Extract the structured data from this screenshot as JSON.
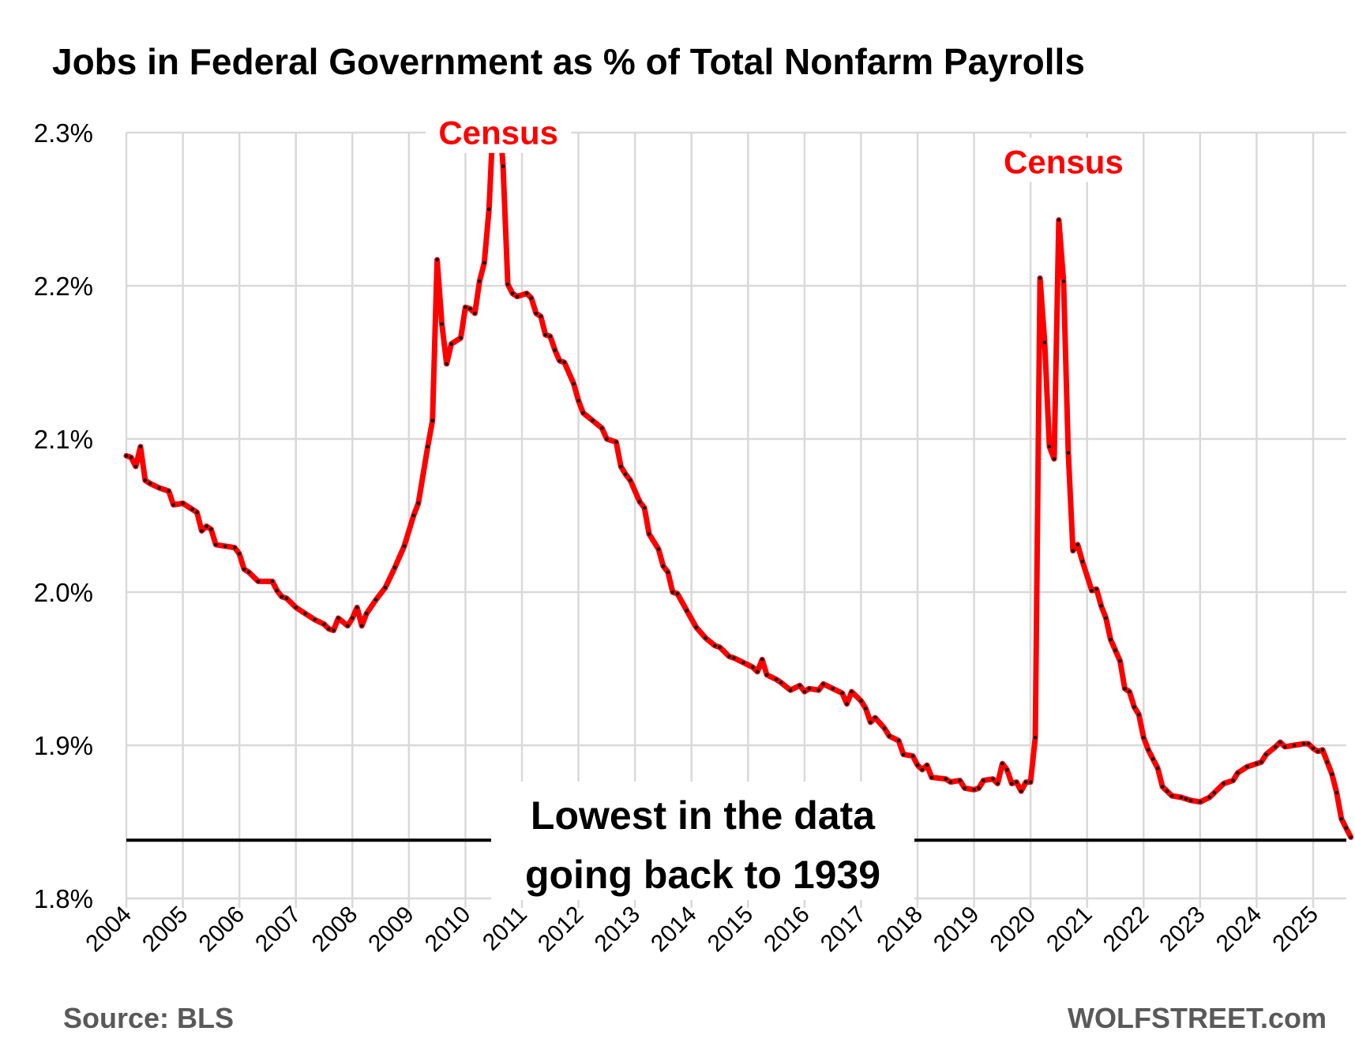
{
  "chart_data": {
    "type": "line",
    "title": "Jobs in Federal Government as % of Total Nonfarm Payrolls",
    "xlabel": "",
    "ylabel": "",
    "ylim": [
      1.8,
      2.3
    ],
    "y_ticks": [
      "1.8%",
      "1.9%",
      "2.0%",
      "2.1%",
      "2.2%",
      "2.3%"
    ],
    "x_ticks": [
      "2004",
      "2005",
      "2006",
      "2007",
      "2008",
      "2009",
      "2010",
      "2011",
      "2012",
      "2013",
      "2014",
      "2015",
      "2016",
      "2017",
      "2018",
      "2019",
      "2020",
      "2021",
      "2022",
      "2023",
      "2024",
      "2025"
    ],
    "grid": true,
    "series": [
      {
        "color": "#ff0000",
        "marker_color": "#000000",
        "points": [
          [
            "2004-01",
            2.089
          ],
          [
            "2004-02",
            2.088
          ],
          [
            "2004-03",
            2.082
          ],
          [
            "2004-04",
            2.095
          ],
          [
            "2004-05",
            2.073
          ],
          [
            "2004-06",
            2.071
          ],
          [
            "2004-08",
            2.068
          ],
          [
            "2004-10",
            2.066
          ],
          [
            "2004-11",
            2.057
          ],
          [
            "2005-01",
            2.058
          ],
          [
            "2005-03",
            2.054
          ],
          [
            "2005-04",
            2.052
          ],
          [
            "2005-05",
            2.04
          ],
          [
            "2005-06",
            2.043
          ],
          [
            "2005-07",
            2.041
          ],
          [
            "2005-08",
            2.031
          ],
          [
            "2005-10",
            2.03
          ],
          [
            "2005-12",
            2.029
          ],
          [
            "2006-01",
            2.025
          ],
          [
            "2006-02",
            2.015
          ],
          [
            "2006-03",
            2.013
          ],
          [
            "2006-05",
            2.007
          ],
          [
            "2006-08",
            2.007
          ],
          [
            "2006-09",
            2.001
          ],
          [
            "2006-10",
            1.997
          ],
          [
            "2006-11",
            1.996
          ],
          [
            "2007-01",
            1.99
          ],
          [
            "2007-03",
            1.986
          ],
          [
            "2007-05",
            1.982
          ],
          [
            "2007-07",
            1.979
          ],
          [
            "2007-08",
            1.976
          ],
          [
            "2007-09",
            1.975
          ],
          [
            "2007-10",
            1.983
          ],
          [
            "2007-12",
            1.978
          ],
          [
            "2008-01",
            1.983
          ],
          [
            "2008-02",
            1.99
          ],
          [
            "2008-03",
            1.978
          ],
          [
            "2008-04",
            1.986
          ],
          [
            "2008-06",
            1.995
          ],
          [
            "2008-08",
            2.003
          ],
          [
            "2008-10",
            2.016
          ],
          [
            "2008-12",
            2.03
          ],
          [
            "2009-02",
            2.05
          ],
          [
            "2009-03",
            2.058
          ],
          [
            "2009-05",
            2.095
          ],
          [
            "2009-06",
            2.112
          ],
          [
            "2009-07",
            2.217
          ],
          [
            "2009-08",
            2.175
          ],
          [
            "2009-09",
            2.149
          ],
          [
            "2009-10",
            2.162
          ],
          [
            "2009-12",
            2.166
          ],
          [
            "2010-01",
            2.186
          ],
          [
            "2010-02",
            2.185
          ],
          [
            "2010-03",
            2.182
          ],
          [
            "2010-04",
            2.203
          ],
          [
            "2010-05",
            2.215
          ],
          [
            "2010-06",
            2.25
          ],
          [
            "2010-07",
            2.315
          ],
          [
            "2010-08",
            2.32
          ],
          [
            "2010-09",
            2.278
          ],
          [
            "2010-10",
            2.201
          ],
          [
            "2010-11",
            2.195
          ],
          [
            "2010-12",
            2.193
          ],
          [
            "2011-02",
            2.195
          ],
          [
            "2011-03",
            2.192
          ],
          [
            "2011-04",
            2.182
          ],
          [
            "2011-05",
            2.18
          ],
          [
            "2011-06",
            2.168
          ],
          [
            "2011-07",
            2.167
          ],
          [
            "2011-08",
            2.158
          ],
          [
            "2011-09",
            2.151
          ],
          [
            "2011-10",
            2.15
          ],
          [
            "2011-12",
            2.136
          ],
          [
            "2012-01",
            2.125
          ],
          [
            "2012-02",
            2.117
          ],
          [
            "2012-04",
            2.112
          ],
          [
            "2012-06",
            2.107
          ],
          [
            "2012-07",
            2.1
          ],
          [
            "2012-09",
            2.098
          ],
          [
            "2012-10",
            2.082
          ],
          [
            "2012-11",
            2.077
          ],
          [
            "2012-12",
            2.073
          ],
          [
            "2013-02",
            2.059
          ],
          [
            "2013-03",
            2.055
          ],
          [
            "2013-04",
            2.038
          ],
          [
            "2013-06",
            2.028
          ],
          [
            "2013-07",
            2.017
          ],
          [
            "2013-08",
            2.013
          ],
          [
            "2013-09",
            2.0
          ],
          [
            "2013-10",
            1.999
          ],
          [
            "2013-12",
            1.988
          ],
          [
            "2014-02",
            1.977
          ],
          [
            "2014-04",
            1.97
          ],
          [
            "2014-06",
            1.965
          ],
          [
            "2014-07",
            1.964
          ],
          [
            "2014-09",
            1.958
          ],
          [
            "2014-10",
            1.957
          ],
          [
            "2014-12",
            1.954
          ],
          [
            "2015-02",
            1.951
          ],
          [
            "2015-03",
            1.948
          ],
          [
            "2015-04",
            1.956
          ],
          [
            "2015-05",
            1.946
          ],
          [
            "2015-07",
            1.943
          ],
          [
            "2015-08",
            1.941
          ],
          [
            "2015-10",
            1.936
          ],
          [
            "2015-12",
            1.939
          ],
          [
            "2016-01",
            1.935
          ],
          [
            "2016-02",
            1.937
          ],
          [
            "2016-04",
            1.936
          ],
          [
            "2016-05",
            1.94
          ],
          [
            "2016-07",
            1.937
          ],
          [
            "2016-09",
            1.934
          ],
          [
            "2016-10",
            1.927
          ],
          [
            "2016-11",
            1.935
          ],
          [
            "2017-01",
            1.929
          ],
          [
            "2017-02",
            1.924
          ],
          [
            "2017-03",
            1.915
          ],
          [
            "2017-04",
            1.918
          ],
          [
            "2017-06",
            1.911
          ],
          [
            "2017-07",
            1.906
          ],
          [
            "2017-09",
            1.903
          ],
          [
            "2017-10",
            1.894
          ],
          [
            "2017-12",
            1.893
          ],
          [
            "2018-01",
            1.887
          ],
          [
            "2018-02",
            1.884
          ],
          [
            "2018-03",
            1.887
          ],
          [
            "2018-04",
            1.879
          ],
          [
            "2018-07",
            1.878
          ],
          [
            "2018-08",
            1.876
          ],
          [
            "2018-10",
            1.877
          ],
          [
            "2018-11",
            1.872
          ],
          [
            "2019-01",
            1.871
          ],
          [
            "2019-02",
            1.872
          ],
          [
            "2019-03",
            1.877
          ],
          [
            "2019-05",
            1.878
          ],
          [
            "2019-06",
            1.875
          ],
          [
            "2019-07",
            1.888
          ],
          [
            "2019-08",
            1.884
          ],
          [
            "2019-09",
            1.875
          ],
          [
            "2019-10",
            1.876
          ],
          [
            "2019-11",
            1.87
          ],
          [
            "2019-12",
            1.876
          ],
          [
            "2020-01",
            1.876
          ],
          [
            "2020-02",
            1.905
          ],
          [
            "2020-03",
            2.205
          ],
          [
            "2020-04",
            2.163
          ],
          [
            "2020-05",
            2.095
          ],
          [
            "2020-06",
            2.087
          ],
          [
            "2020-07",
            2.243
          ],
          [
            "2020-08",
            2.203
          ],
          [
            "2020-09",
            2.091
          ],
          [
            "2020-10",
            2.027
          ],
          [
            "2020-11",
            2.031
          ],
          [
            "2020-12",
            2.02
          ],
          [
            "2021-02",
            2.001
          ],
          [
            "2021-03",
            2.002
          ],
          [
            "2021-04",
            1.991
          ],
          [
            "2021-05",
            1.983
          ],
          [
            "2021-06",
            1.969
          ],
          [
            "2021-07",
            1.962
          ],
          [
            "2021-08",
            1.955
          ],
          [
            "2021-09",
            1.937
          ],
          [
            "2021-10",
            1.935
          ],
          [
            "2021-11",
            1.925
          ],
          [
            "2021-12",
            1.92
          ],
          [
            "2022-01",
            1.905
          ],
          [
            "2022-02",
            1.897
          ],
          [
            "2022-03",
            1.891
          ],
          [
            "2022-04",
            1.885
          ],
          [
            "2022-05",
            1.873
          ],
          [
            "2022-06",
            1.87
          ],
          [
            "2022-07",
            1.867
          ],
          [
            "2022-09",
            1.866
          ],
          [
            "2022-10",
            1.865
          ],
          [
            "2022-11",
            1.864
          ],
          [
            "2023-01",
            1.863
          ],
          [
            "2023-03",
            1.866
          ],
          [
            "2023-04",
            1.869
          ],
          [
            "2023-06",
            1.875
          ],
          [
            "2023-08",
            1.877
          ],
          [
            "2023-09",
            1.882
          ],
          [
            "2023-11",
            1.886
          ],
          [
            "2024-01",
            1.888
          ],
          [
            "2024-02",
            1.889
          ],
          [
            "2024-03",
            1.894
          ],
          [
            "2024-05",
            1.899
          ],
          [
            "2024-06",
            1.902
          ],
          [
            "2024-07",
            1.899
          ],
          [
            "2024-09",
            1.9
          ],
          [
            "2024-11",
            1.901
          ],
          [
            "2024-12",
            1.901
          ],
          [
            "2025-01",
            1.898
          ],
          [
            "2025-02",
            1.896
          ],
          [
            "2025-03",
            1.897
          ],
          [
            "2025-04",
            1.889
          ],
          [
            "2025-05",
            1.881
          ],
          [
            "2025-06",
            1.869
          ],
          [
            "2025-07",
            1.852
          ],
          [
            "2025-08",
            1.846
          ],
          [
            "2025-09",
            1.84
          ]
        ]
      }
    ],
    "annotations": [
      {
        "text": "Census",
        "color": "#ff0000",
        "x": "2010-08",
        "y": 2.295
      },
      {
        "text": "Census",
        "color": "#ff0000",
        "x": "2020-08",
        "y": 2.276
      }
    ],
    "reference_line": {
      "y": 1.838,
      "color": "#000000",
      "label_lines": [
        "Lowest in the data",
        "going back to 1939"
      ]
    }
  },
  "footer": {
    "source": "Source: BLS",
    "brand": "WOLFSTREET.com"
  }
}
